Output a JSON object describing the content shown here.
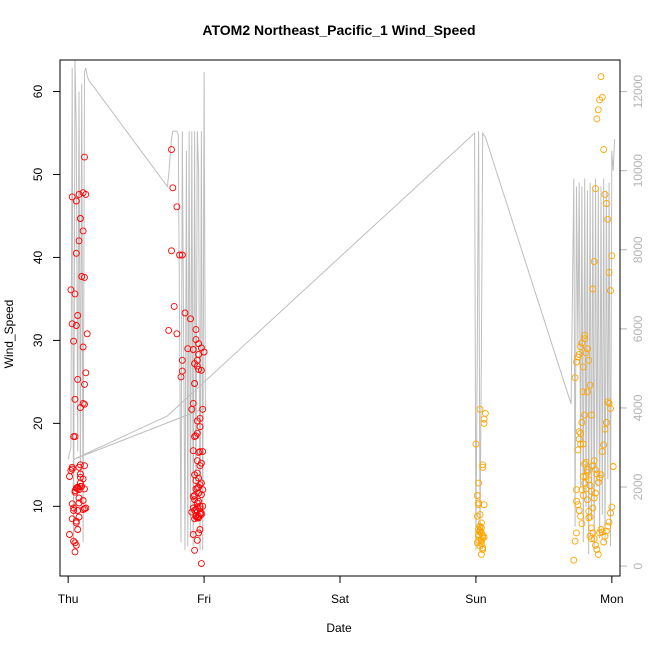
{
  "chart_data": {
    "type": "scatter",
    "title": "ATOM2 Northeast_Pacific_1 Wind_Speed",
    "xlabel": "Date",
    "ylabel": "Wind_Speed",
    "x_tick_labels": [
      "Thu",
      "Fri",
      "Sat",
      "Sun",
      "Mon"
    ],
    "x_tick_values": [
      0,
      1,
      2,
      3,
      4
    ],
    "xlim": [
      -0.06,
      4.06
    ],
    "ylim": [
      1.6,
      63.8
    ],
    "y_ticks": [
      10,
      20,
      30,
      40,
      50,
      60
    ],
    "y2_ticks": [
      0,
      2000,
      4000,
      6000,
      8000,
      10000,
      12000
    ],
    "y2lim": [
      -250,
      12800
    ],
    "grid": false,
    "colors": {
      "red": "#ff0000",
      "orange": "#ffa500",
      "line": "#bebebe",
      "axis_right": "#b4b4b4"
    },
    "series": [
      {
        "color": "red",
        "x": [
          0.01,
          0.02,
          0.03,
          0.03,
          0.01,
          0.03,
          0.04,
          0.06,
          0.07,
          0.07,
          0.08,
          0.08,
          0.09,
          0.09,
          0.1,
          0.11,
          0.11,
          0.12,
          0.09,
          0.12,
          0.13,
          0.04,
          0.05,
          0.07,
          0.08,
          0.05,
          0.06,
          0.06,
          0.05,
          0.07,
          0.11,
          0.09,
          0.08,
          0.05,
          0.12,
          0.04,
          0.11,
          0.09,
          0.05,
          0.12,
          0.13,
          0.07,
          0.06,
          0.03,
          0.02,
          0.05,
          0.1,
          0.12,
          0.07,
          0.11,
          0.14,
          0.04,
          0.06,
          0.08,
          0.11,
          0.09,
          0.06,
          0.11,
          0.03,
          0.08,
          0.12,
          0.13,
          0.12,
          0.09,
          0.06,
          0.07,
          0.04,
          0.03,
          0.05,
          0.08,
          0.74,
          0.76,
          0.77,
          0.8,
          0.82,
          0.84,
          0.76,
          0.78,
          0.8,
          0.84,
          0.83,
          0.88,
          0.84,
          0.93,
          0.92,
          0.95,
          0.86,
          0.9,
          0.94,
          0.96,
          0.98,
          1.0,
          0.95,
          0.96,
          0.98,
          0.91,
          0.93,
          0.95,
          0.97,
          0.99,
          0.94,
          0.92,
          0.96,
          0.97,
          0.95,
          0.98,
          0.93,
          0.96,
          0.94,
          0.97,
          0.95,
          0.99,
          0.96,
          0.92,
          0.93,
          0.95,
          0.97,
          0.94,
          0.98,
          0.96,
          0.93,
          0.95,
          0.97,
          0.91,
          0.94,
          0.96,
          0.92,
          0.98,
          0.95,
          0.97,
          0.99,
          0.93,
          0.96,
          0.94,
          0.98,
          0.95,
          0.97,
          0.93,
          0.96,
          0.94,
          0.92,
          0.95,
          0.97,
          0.99,
          0.96,
          0.98,
          0.93,
          0.95,
          0.94,
          0.97,
          0.96,
          0.92,
          0.95,
          0.93,
          0.98
        ],
        "y": [
          13.6,
          14.3,
          14.7,
          14.5,
          6.6,
          8.5,
          9.5,
          8.2,
          9.5,
          12.3,
          12.0,
          10.4,
          13.5,
          13.9,
          12.4,
          10.7,
          13.3,
          12.1,
          12.4,
          9.7,
          9.8,
          5.8,
          4.5,
          7.2,
          8.7,
          5.6,
          8.0,
          5.3,
          11.9,
          12.3,
          9.6,
          12.8,
          11.0,
          22.9,
          22.3,
          18.4,
          22.4,
          21.9,
          18.4,
          24.7,
          26.1,
          25.3,
          31.8,
          32.0,
          36.1,
          35.6,
          37.7,
          37.6,
          33.0,
          29.2,
          30.8,
          29.9,
          40.5,
          42.0,
          43.2,
          44.7,
          46.8,
          47.8,
          47.3,
          47.6,
          52.1,
          47.6,
          14.9,
          15.0,
          12.2,
          12.1,
          9.8,
          10.3,
          11.7,
          14.7,
          31.2,
          53.0,
          48.4,
          46.1,
          40.3,
          40.3,
          40.8,
          34.1,
          30.8,
          26.3,
          25.6,
          29.0,
          27.6,
          27.2,
          28.9,
          26.9,
          33.3,
          32.6,
          31.3,
          29.6,
          29.1,
          28.6,
          27.6,
          28.3,
          26.4,
          21.7,
          18.4,
          20.3,
          19.6,
          21.7,
          18.5,
          16.7,
          16.5,
          14.9,
          15.5,
          15.2,
          13.8,
          13.4,
          13.1,
          12.6,
          12.2,
          12.0,
          11.6,
          11.2,
          10.8,
          10.4,
          10.0,
          9.6,
          9.2,
          8.8,
          8.5,
          9.9,
          9.7,
          9.3,
          8.9,
          8.6,
          9.8,
          9.0,
          8.7,
          9.1,
          10.0,
          11.3,
          12.3,
          12.1,
          12.8,
          14.0,
          16.6,
          24.8,
          26.5,
          30.1,
          22.4,
          18.8,
          20.6,
          16.6,
          10.6,
          11.4,
          9.5,
          8.6,
          8.8,
          7.2,
          6.8,
          6.6,
          5.9,
          4.7,
          3.1
        ]
      },
      {
        "color": "orange",
        "x": [
          3.0,
          3.01,
          3.02,
          3.02,
          3.03,
          3.03,
          3.04,
          3.04,
          3.02,
          3.03,
          3.04,
          3.05,
          3.05,
          3.06,
          3.06,
          3.07,
          3.03,
          3.04,
          3.05,
          3.06,
          3.02,
          3.03,
          3.04,
          3.05,
          3.01,
          3.02,
          3.03,
          3.04,
          3.05,
          3.06,
          3.02,
          3.03,
          3.04,
          3.05,
          3.02,
          3.01,
          3.72,
          3.73,
          3.74,
          3.74,
          3.75,
          3.76,
          3.76,
          3.77,
          3.77,
          3.78,
          3.79,
          3.79,
          3.8,
          3.8,
          3.81,
          3.82,
          3.82,
          3.83,
          3.84,
          3.85,
          3.86,
          3.87,
          3.88,
          3.89,
          3.9,
          3.91,
          3.92,
          3.93,
          3.94,
          3.95,
          3.96,
          3.97,
          3.98,
          3.99,
          4.0,
          4.01,
          3.78,
          3.79,
          3.8,
          3.81,
          3.82,
          3.83,
          3.84,
          3.85,
          3.86,
          3.87,
          3.88,
          3.89,
          3.9,
          3.91,
          3.92,
          3.93,
          3.94,
          3.95,
          3.96,
          3.97,
          3.98,
          3.99,
          4.0,
          3.74,
          3.75,
          3.76,
          3.77,
          3.78,
          3.79,
          3.8,
          3.81,
          3.82,
          3.83,
          3.84,
          3.85,
          3.86,
          3.87,
          3.88,
          3.89,
          3.9,
          3.91,
          3.92,
          3.93,
          3.94,
          3.95,
          3.96,
          3.97,
          3.98,
          3.99,
          3.73,
          3.74,
          3.75,
          3.76,
          3.77,
          3.78,
          3.79,
          3.8,
          3.81,
          3.82,
          3.83,
          3.84,
          3.85,
          3.86,
          3.87,
          3.88
        ],
        "y": [
          17.5,
          11.3,
          10.4,
          10.2,
          9.0,
          7.5,
          6.0,
          6.8,
          7.2,
          7.6,
          8.0,
          15.0,
          14.7,
          20.0,
          20.5,
          21.2,
          21.7,
          5.5,
          6.5,
          6.3,
          5.9,
          5.2,
          4.2,
          5.0,
          5.6,
          6.4,
          6.9,
          7.4,
          4.8,
          10.2,
          6.6,
          7.1,
          5.8,
          6.2,
          12.8,
          8.8,
          3.5,
          5.8,
          6.8,
          12.0,
          16.8,
          18.1,
          19.0,
          17.5,
          18.8,
          20.1,
          17.5,
          26.8,
          30.2,
          30.6,
          28.5,
          29.0,
          23.8,
          27.6,
          24.6,
          21.0,
          36.2,
          39.5,
          48.3,
          56.7,
          57.8,
          59.0,
          61.8,
          59.3,
          53.0,
          47.6,
          46.5,
          44.6,
          38.2,
          36.0,
          40.2,
          14.8,
          12.0,
          13.6,
          15.1,
          12.1,
          14.4,
          9.4,
          8.7,
          7.4,
          6.8,
          6.1,
          5.3,
          4.8,
          4.2,
          6.8,
          7.2,
          6.9,
          5.7,
          6.4,
          7.0,
          7.6,
          8.1,
          9.2,
          9.9,
          10.6,
          10.2,
          9.5,
          8.8,
          7.9,
          11.3,
          12.8,
          13.6,
          14.1,
          13.2,
          12.5,
          11.8,
          14.9,
          15.5,
          14.4,
          13.9,
          12.9,
          13.4,
          13.8,
          16.6,
          17.4,
          19.3,
          20.1,
          22.6,
          22.4,
          21.8,
          25.5,
          27.4,
          28.0,
          28.3,
          29.2,
          29.7,
          23.8,
          21.0,
          15.3,
          10.8,
          8.6,
          6.4,
          6.1,
          9.8,
          11.0,
          11.6
        ]
      }
    ],
    "line_series": {
      "axis": "right",
      "x": [
        0.0,
        0.02,
        0.03,
        0.04,
        0.05,
        0.06,
        0.07,
        0.08,
        0.09,
        0.1,
        0.11,
        0.12,
        0.13,
        0.14,
        0.15,
        0.73,
        0.74,
        0.76,
        0.77,
        0.79,
        0.8,
        0.81,
        0.83,
        0.84,
        0.86,
        0.87,
        0.88,
        0.89,
        0.9,
        0.91,
        0.92,
        0.93,
        0.94,
        0.95,
        0.96,
        0.97,
        0.98,
        0.99,
        1.0,
        1.01,
        1.01,
        0.04,
        0.73,
        2.99,
        3.0,
        3.01,
        3.02,
        3.03,
        3.04,
        3.05,
        3.05,
        3.06,
        3.07,
        3.7,
        3.72,
        3.73,
        3.74,
        3.75,
        3.76,
        3.77,
        3.78,
        3.79,
        3.8,
        3.81,
        3.82,
        3.83,
        3.84,
        3.85,
        3.86,
        3.87,
        3.88,
        3.89,
        3.9,
        3.91,
        3.92,
        3.93,
        3.94,
        3.95,
        3.96,
        3.97,
        3.98,
        3.99,
        4.0,
        4.01,
        4.02
      ],
      "y": [
        2700,
        3000,
        12600,
        500,
        12800,
        11000,
        2900,
        12000,
        2200,
        12200,
        600,
        12500,
        12600,
        12400,
        12300,
        9600,
        9900,
        10800,
        11000,
        11000,
        11000,
        10900,
        600,
        11000,
        400,
        10500,
        500,
        11000,
        800,
        11000,
        500,
        11000,
        1500,
        11000,
        10000,
        400,
        11000,
        400,
        12500,
        4000,
        4000,
        2700,
        3800,
        10950,
        400,
        5600,
        11000,
        700,
        5400,
        10900,
        10950,
        10900,
        10850,
        4100,
        9800,
        1000,
        9600,
        5500,
        9700,
        2000,
        9600,
        600,
        9800,
        1500,
        9500,
        300,
        9700,
        1200,
        9600,
        400,
        9800,
        2000,
        9500,
        700,
        9600,
        1300,
        9800,
        600,
        9500,
        2200,
        9700,
        500,
        10500,
        10000,
        10800
      ]
    }
  }
}
